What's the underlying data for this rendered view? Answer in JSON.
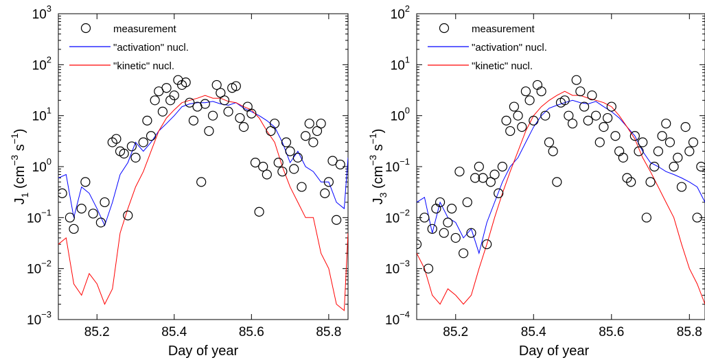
{
  "chart_data": [
    {
      "type": "line",
      "xlabel": "Day of year",
      "ylabel": "J₁ (cm⁻³ s⁻¹)",
      "ylabel_main": "J",
      "ylabel_sub": "1",
      "ylabel_rest_a": " (cm",
      "ylabel_sup_a": "−3",
      "ylabel_rest_b": " s",
      "ylabel_sup_b": "−1",
      "ylabel_rest_c": ")",
      "xlim": [
        85.1,
        85.85
      ],
      "ylim_exp": [
        -3,
        3
      ],
      "y_scale": "log",
      "xticks": [
        "85.2",
        "85.4",
        "85.6",
        "85.8"
      ],
      "xtick_values": [
        85.2,
        85.4,
        85.6,
        85.8
      ],
      "yticks": [
        {
          "base": "10",
          "exp": "−3"
        },
        {
          "base": "10",
          "exp": "−2"
        },
        {
          "base": "10",
          "exp": "−1"
        },
        {
          "base": "10",
          "exp": "0"
        },
        {
          "base": "10",
          "exp": "1"
        },
        {
          "base": "10",
          "exp": "2"
        },
        {
          "base": "10",
          "exp": "3"
        }
      ],
      "ytick_exps": [
        -3,
        -2,
        -1,
        0,
        1,
        2,
        3
      ],
      "legend": {
        "position": "top-left",
        "entries": [
          {
            "label": "measurement",
            "style": "circle",
            "color": "#000000"
          },
          {
            "label": "\"activation\" nucl.",
            "style": "line",
            "color": "#0000ff"
          },
          {
            "label": "\"kinetic\" nucl.",
            "style": "line",
            "color": "#ff0000"
          }
        ]
      },
      "series": [
        {
          "name": "\"activation\" nucl.",
          "color": "#0000ff",
          "x": [
            85.1,
            85.12,
            85.14,
            85.16,
            85.18,
            85.2,
            85.22,
            85.24,
            85.26,
            85.28,
            85.3,
            85.32,
            85.34,
            85.36,
            85.38,
            85.4,
            85.42,
            85.44,
            85.46,
            85.48,
            85.5,
            85.52,
            85.54,
            85.56,
            85.58,
            85.6,
            85.62,
            85.64,
            85.66,
            85.68,
            85.7,
            85.72,
            85.74,
            85.76,
            85.78,
            85.8,
            85.82,
            85.84,
            85.85
          ],
          "y": [
            0.6,
            0.7,
            0.1,
            0.4,
            0.3,
            0.15,
            0.07,
            0.2,
            0.7,
            1.2,
            3,
            2,
            3,
            5,
            7,
            10,
            15,
            17,
            18,
            18,
            19,
            17,
            16,
            18,
            14,
            12,
            10,
            8,
            6,
            3,
            1.2,
            2,
            1,
            0.8,
            0.5,
            0.5,
            0.2,
            0.15,
            1.5
          ]
        },
        {
          "name": "\"kinetic\" nucl.",
          "color": "#ff0000",
          "x": [
            85.1,
            85.12,
            85.14,
            85.16,
            85.18,
            85.2,
            85.22,
            85.24,
            85.26,
            85.28,
            85.3,
            85.32,
            85.34,
            85.36,
            85.38,
            85.4,
            85.42,
            85.44,
            85.46,
            85.48,
            85.5,
            85.52,
            85.54,
            85.56,
            85.58,
            85.6,
            85.62,
            85.64,
            85.66,
            85.68,
            85.7,
            85.72,
            85.74,
            85.76,
            85.78,
            85.8,
            85.82,
            85.84,
            85.85
          ],
          "y": [
            0.03,
            0.04,
            0.005,
            0.003,
            0.008,
            0.005,
            0.002,
            0.004,
            0.05,
            0.15,
            0.4,
            0.8,
            2,
            5,
            9,
            13,
            18,
            20,
            22,
            25,
            22,
            22,
            19,
            18,
            15,
            13,
            9,
            5,
            3,
            1,
            0.4,
            0.2,
            0.1,
            0.1,
            0.02,
            0.01,
            0.002,
            0.0015,
            0.05
          ]
        },
        {
          "name": "measurement",
          "color": "#000000",
          "style": "scatter",
          "x": [
            85.11,
            85.13,
            85.14,
            85.16,
            85.17,
            85.19,
            85.21,
            85.22,
            85.24,
            85.25,
            85.26,
            85.27,
            85.28,
            85.29,
            85.3,
            85.32,
            85.33,
            85.34,
            85.35,
            85.36,
            85.37,
            85.38,
            85.39,
            85.4,
            85.41,
            85.42,
            85.43,
            85.44,
            85.45,
            85.46,
            85.47,
            85.48,
            85.49,
            85.5,
            85.51,
            85.52,
            85.53,
            85.54,
            85.55,
            85.56,
            85.57,
            85.58,
            85.59,
            85.6,
            85.61,
            85.62,
            85.63,
            85.64,
            85.65,
            85.66,
            85.67,
            85.68,
            85.69,
            85.7,
            85.71,
            85.72,
            85.73,
            85.74,
            85.75,
            85.76,
            85.77,
            85.78,
            85.79,
            85.8,
            85.81,
            85.82,
            85.83
          ],
          "y": [
            0.3,
            0.1,
            0.06,
            0.15,
            0.5,
            0.12,
            0.08,
            0.2,
            3,
            3.5,
            2,
            1.8,
            0.11,
            2.5,
            1.5,
            3,
            8,
            4,
            20,
            30,
            12,
            35,
            20,
            25,
            50,
            40,
            45,
            18,
            8,
            15,
            0.5,
            17,
            5,
            10,
            40,
            28,
            20,
            12,
            35,
            38,
            9,
            6,
            15,
            11,
            1.2,
            0.13,
            1,
            0.7,
            5,
            7,
            1.2,
            0.8,
            3,
            2,
            0.9,
            1.5,
            0.4,
            4,
            7,
            3,
            5,
            7,
            0.3,
            0.5,
            1.3,
            0.09,
            1.1
          ]
        }
      ]
    },
    {
      "type": "line",
      "xlabel": "Day of year",
      "ylabel": "J₃ (cm⁻³ s⁻¹)",
      "ylabel_main": "J",
      "ylabel_sub": "3",
      "ylabel_rest_a": " (cm",
      "ylabel_sup_a": "−3",
      "ylabel_rest_b": " s",
      "ylabel_sup_b": "−1",
      "ylabel_rest_c": ")",
      "xlim": [
        85.1,
        85.84
      ],
      "ylim_exp": [
        -4,
        2
      ],
      "y_scale": "log",
      "xticks": [
        "85.2",
        "85.4",
        "85.6",
        "85.8"
      ],
      "xtick_values": [
        85.2,
        85.4,
        85.6,
        85.8
      ],
      "yticks": [
        {
          "base": "10",
          "exp": "−4"
        },
        {
          "base": "10",
          "exp": "−3"
        },
        {
          "base": "10",
          "exp": "−2"
        },
        {
          "base": "10",
          "exp": "−1"
        },
        {
          "base": "10",
          "exp": "0"
        },
        {
          "base": "10",
          "exp": "1"
        },
        {
          "base": "10",
          "exp": "2"
        }
      ],
      "ytick_exps": [
        -4,
        -3,
        -2,
        -1,
        0,
        1,
        2
      ],
      "legend": {
        "position": "top-left",
        "entries": [
          {
            "label": "measurement",
            "style": "circle",
            "color": "#000000"
          },
          {
            "label": "\"activation\" nucl.",
            "style": "line",
            "color": "#0000ff"
          },
          {
            "label": "\"kinetic\" nucl.",
            "style": "line",
            "color": "#ff0000"
          }
        ]
      },
      "series": [
        {
          "name": "\"activation\" nucl.",
          "color": "#0000ff",
          "x": [
            85.1,
            85.12,
            85.14,
            85.16,
            85.18,
            85.2,
            85.22,
            85.24,
            85.26,
            85.28,
            85.3,
            85.32,
            85.34,
            85.36,
            85.38,
            85.4,
            85.42,
            85.44,
            85.46,
            85.48,
            85.5,
            85.52,
            85.54,
            85.56,
            85.58,
            85.6,
            85.62,
            85.64,
            85.66,
            85.68,
            85.7,
            85.72,
            85.74,
            85.76,
            85.78,
            85.8,
            85.82,
            85.84
          ],
          "y": [
            0.02,
            0.025,
            0.005,
            0.02,
            0.01,
            0.008,
            0.004,
            0.006,
            0.002,
            0.008,
            0.02,
            0.05,
            0.1,
            0.15,
            0.3,
            0.6,
            1,
            1.4,
            1.6,
            1.8,
            2,
            1.8,
            1.7,
            1.9,
            1.5,
            1.2,
            0.9,
            0.6,
            0.4,
            0.2,
            0.12,
            0.1,
            0.08,
            0.07,
            0.06,
            0.05,
            0.04,
            0.02
          ]
        },
        {
          "name": "\"kinetic\" nucl.",
          "color": "#ff0000",
          "x": [
            85.1,
            85.12,
            85.14,
            85.16,
            85.18,
            85.2,
            85.22,
            85.24,
            85.26,
            85.28,
            85.3,
            85.32,
            85.34,
            85.36,
            85.38,
            85.4,
            85.42,
            85.44,
            85.46,
            85.48,
            85.5,
            85.52,
            85.54,
            85.56,
            85.58,
            85.6,
            85.62,
            85.64,
            85.66,
            85.68,
            85.7,
            85.72,
            85.74,
            85.76,
            85.78,
            85.8,
            85.82,
            85.84
          ],
          "y": [
            0.002,
            0.001,
            0.0003,
            0.0002,
            0.0004,
            0.0003,
            0.0002,
            0.0003,
            0.001,
            0.003,
            0.01,
            0.03,
            0.08,
            0.2,
            0.5,
            1,
            1.5,
            2,
            2.5,
            3,
            2.5,
            2.5,
            2.2,
            2,
            1.8,
            1.5,
            1,
            0.6,
            0.35,
            0.15,
            0.08,
            0.04,
            0.02,
            0.01,
            0.003,
            0.001,
            0.0005,
            0.0002
          ]
        },
        {
          "name": "measurement",
          "color": "#000000",
          "style": "scatter",
          "x": [
            85.1,
            85.12,
            85.13,
            85.14,
            85.15,
            85.16,
            85.17,
            85.18,
            85.19,
            85.2,
            85.21,
            85.22,
            85.23,
            85.24,
            85.25,
            85.26,
            85.27,
            85.28,
            85.29,
            85.3,
            85.31,
            85.32,
            85.33,
            85.34,
            85.35,
            85.36,
            85.37,
            85.38,
            85.39,
            85.4,
            85.41,
            85.42,
            85.43,
            85.44,
            85.45,
            85.46,
            85.47,
            85.48,
            85.49,
            85.5,
            85.51,
            85.52,
            85.53,
            85.54,
            85.55,
            85.56,
            85.57,
            85.58,
            85.59,
            85.6,
            85.61,
            85.62,
            85.63,
            85.64,
            85.65,
            85.66,
            85.67,
            85.68,
            85.69,
            85.7,
            85.71,
            85.72,
            85.73,
            85.74,
            85.75,
            85.76,
            85.77,
            85.78,
            85.79,
            85.8,
            85.81,
            85.82,
            85.83
          ],
          "y": [
            0.003,
            0.01,
            0.001,
            0.006,
            0.015,
            0.02,
            0.005,
            0.008,
            0.015,
            0.004,
            0.08,
            0.002,
            0.02,
            0.005,
            0.06,
            0.1,
            0.06,
            0.003,
            0.05,
            0.07,
            0.03,
            0.1,
            0.8,
            0.5,
            1.5,
            1,
            0.6,
            3,
            2,
            0.8,
            4,
            3,
            1,
            0.3,
            0.2,
            0.05,
            1.8,
            2,
            1,
            0.7,
            5,
            3,
            1.5,
            0.8,
            2.5,
            1,
            0.3,
            0.6,
            0.9,
            1.5,
            0.4,
            0.2,
            0.15,
            0.06,
            0.05,
            0.4,
            0.2,
            0.3,
            0.01,
            0.05,
            0.1,
            0.2,
            0.4,
            0.7,
            0.3,
            0.1,
            0.15,
            0.04,
            0.6,
            0.2,
            0.3,
            0.01,
            0.1
          ]
        }
      ]
    }
  ]
}
